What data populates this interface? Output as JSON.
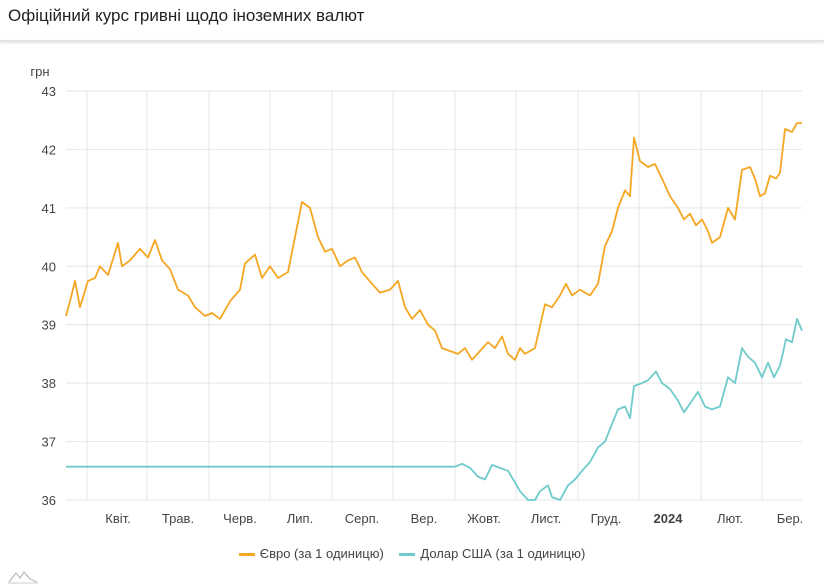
{
  "title": "Офіційний курс гривні щодо іноземних валют",
  "chart_data": {
    "type": "line",
    "title": "Офіційний курс гривні щодо іноземних валют",
    "ylabel": "грн",
    "xlabel": "",
    "ylim": [
      36,
      43
    ],
    "xlim": [
      0,
      368
    ],
    "x_unit": "days from start of visible range (approx. mid-March 2023)",
    "yticks": [
      "36",
      "37",
      "38",
      "39",
      "40",
      "41",
      "42",
      "43"
    ],
    "xticks": [
      {
        "label": "Квіт.",
        "at": 26,
        "bold": false
      },
      {
        "label": "Трав.",
        "at": 56,
        "bold": false
      },
      {
        "label": "Черв.",
        "at": 87,
        "bold": false
      },
      {
        "label": "Лип.",
        "at": 117,
        "bold": false
      },
      {
        "label": "Серп.",
        "at": 148,
        "bold": false
      },
      {
        "label": "Вер.",
        "at": 179,
        "bold": false
      },
      {
        "label": "Жовт.",
        "at": 209,
        "bold": false
      },
      {
        "label": "Лист.",
        "at": 240,
        "bold": false
      },
      {
        "label": "Груд.",
        "at": 270,
        "bold": false
      },
      {
        "label": "2024",
        "at": 301,
        "bold": true
      },
      {
        "label": "Лют.",
        "at": 332,
        "bold": false
      },
      {
        "label": "Бер.",
        "at": 362,
        "bold": false
      }
    ],
    "gridlines_x": [
      10.5,
      40.5,
      71.5,
      102,
      133,
      163.5,
      194.5,
      225,
      256,
      286.5,
      317.5,
      348
    ],
    "grid": true,
    "legend_position": "bottom",
    "series": [
      {
        "name": "Євро (за 1 одиницю)",
        "color": "#f5a623",
        "points": [
          [
            0,
            39.15
          ],
          [
            2,
            39.4
          ],
          [
            4.5,
            39.75
          ],
          [
            7,
            39.3
          ],
          [
            11,
            39.75
          ],
          [
            14.5,
            39.8
          ],
          [
            17,
            40.0
          ],
          [
            21,
            39.85
          ],
          [
            26,
            40.4
          ],
          [
            28,
            40.0
          ],
          [
            32,
            40.1
          ],
          [
            37,
            40.3
          ],
          [
            41,
            40.15
          ],
          [
            44.5,
            40.45
          ],
          [
            48,
            40.1
          ],
          [
            52,
            39.95
          ],
          [
            56,
            39.6
          ],
          [
            61,
            39.5
          ],
          [
            64.5,
            39.3
          ],
          [
            69.5,
            39.15
          ],
          [
            73,
            39.2
          ],
          [
            77,
            39.1
          ],
          [
            82,
            39.4
          ],
          [
            87,
            39.6
          ],
          [
            89.5,
            40.05
          ],
          [
            94.5,
            40.2
          ],
          [
            98,
            39.8
          ],
          [
            102,
            40.0
          ],
          [
            106,
            39.8
          ],
          [
            111,
            39.9
          ],
          [
            114.5,
            40.5
          ],
          [
            118,
            41.1
          ],
          [
            122,
            41.0
          ],
          [
            126,
            40.5
          ],
          [
            129.5,
            40.25
          ],
          [
            133,
            40.3
          ],
          [
            137,
            40.0
          ],
          [
            141,
            40.1
          ],
          [
            144.5,
            40.15
          ],
          [
            148,
            39.9
          ],
          [
            153,
            39.7
          ],
          [
            157,
            39.55
          ],
          [
            162,
            39.6
          ],
          [
            166,
            39.75
          ],
          [
            169.5,
            39.3
          ],
          [
            173,
            39.1
          ],
          [
            177,
            39.25
          ],
          [
            181,
            39.0
          ],
          [
            184.5,
            38.9
          ],
          [
            188,
            38.6
          ],
          [
            192,
            38.55
          ],
          [
            196,
            38.5
          ],
          [
            199.5,
            38.6
          ],
          [
            203,
            38.4
          ],
          [
            207,
            38.55
          ],
          [
            211,
            38.7
          ],
          [
            214.5,
            38.6
          ],
          [
            218,
            38.8
          ],
          [
            221,
            38.5
          ],
          [
            224.5,
            38.4
          ],
          [
            227,
            38.6
          ],
          [
            229.5,
            38.5
          ],
          [
            234.5,
            38.6
          ],
          [
            239.5,
            39.35
          ],
          [
            243,
            39.3
          ],
          [
            247,
            39.5
          ],
          [
            250,
            39.7
          ],
          [
            253,
            39.5
          ],
          [
            257,
            39.6
          ],
          [
            262,
            39.5
          ],
          [
            266,
            39.7
          ],
          [
            269.5,
            40.35
          ],
          [
            273,
            40.6
          ],
          [
            276,
            41.0
          ],
          [
            279.5,
            41.3
          ],
          [
            282,
            41.2
          ],
          [
            284,
            42.2
          ],
          [
            287,
            41.8
          ],
          [
            291,
            41.7
          ],
          [
            294.5,
            41.75
          ],
          [
            298,
            41.5
          ],
          [
            302,
            41.2
          ],
          [
            306,
            41.0
          ],
          [
            309,
            40.8
          ],
          [
            312,
            40.9
          ],
          [
            315,
            40.7
          ],
          [
            318,
            40.8
          ],
          [
            321,
            40.6
          ],
          [
            323,
            40.4
          ],
          [
            327,
            40.5
          ],
          [
            331,
            41.0
          ],
          [
            334.5,
            40.8
          ],
          [
            338,
            41.65
          ],
          [
            342,
            41.7
          ],
          [
            344.5,
            41.5
          ],
          [
            347,
            41.2
          ],
          [
            349.5,
            41.25
          ],
          [
            352,
            41.55
          ],
          [
            355,
            41.5
          ],
          [
            357,
            41.6
          ],
          [
            359.5,
            42.35
          ],
          [
            363,
            42.3
          ],
          [
            365.5,
            42.45
          ],
          [
            368,
            42.45
          ]
        ]
      },
      {
        "name": "Долар США (за 1 одиницю)",
        "color": "#6fcbcb",
        "points": [
          [
            0,
            36.57
          ],
          [
            194.5,
            36.57
          ],
          [
            198,
            36.62
          ],
          [
            202,
            36.55
          ],
          [
            206,
            36.4
          ],
          [
            209.5,
            36.35
          ],
          [
            213,
            36.6
          ],
          [
            217,
            36.55
          ],
          [
            221,
            36.5
          ],
          [
            224.5,
            36.3
          ],
          [
            227,
            36.15
          ],
          [
            231,
            36.0
          ],
          [
            234.5,
            36.0
          ],
          [
            237,
            36.15
          ],
          [
            241,
            36.25
          ],
          [
            243,
            36.05
          ],
          [
            247,
            36.0
          ],
          [
            251,
            36.25
          ],
          [
            254.5,
            36.35
          ],
          [
            258,
            36.5
          ],
          [
            262,
            36.65
          ],
          [
            266,
            36.9
          ],
          [
            269.5,
            37.0
          ],
          [
            273,
            37.3
          ],
          [
            276,
            37.55
          ],
          [
            279.5,
            37.6
          ],
          [
            282,
            37.4
          ],
          [
            284,
            37.95
          ],
          [
            288,
            38.0
          ],
          [
            291,
            38.05
          ],
          [
            295,
            38.2
          ],
          [
            298,
            38.0
          ],
          [
            302,
            37.9
          ],
          [
            306,
            37.7
          ],
          [
            309,
            37.5
          ],
          [
            312,
            37.65
          ],
          [
            316,
            37.85
          ],
          [
            319.5,
            37.6
          ],
          [
            323,
            37.55
          ],
          [
            327,
            37.6
          ],
          [
            331,
            38.1
          ],
          [
            334.5,
            38.0
          ],
          [
            338,
            38.6
          ],
          [
            341,
            38.45
          ],
          [
            344.5,
            38.35
          ],
          [
            348,
            38.1
          ],
          [
            351,
            38.35
          ],
          [
            354,
            38.1
          ],
          [
            357,
            38.3
          ],
          [
            360,
            38.75
          ],
          [
            363,
            38.7
          ],
          [
            365.5,
            39.1
          ],
          [
            368,
            38.9
          ]
        ]
      }
    ]
  }
}
